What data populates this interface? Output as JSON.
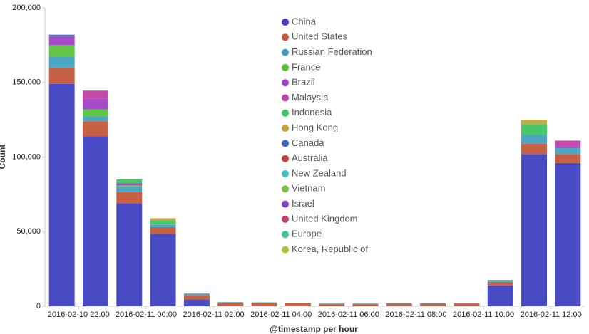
{
  "chart_data": {
    "type": "stacked_bar",
    "xlabel": "@timestamp per hour",
    "ylabel": "Count",
    "categories": [
      null,
      "2016-02-10 22:00",
      null,
      "2016-02-11 00:00",
      null,
      "2016-02-11 02:00",
      null,
      "2016-02-11 04:00",
      null,
      "2016-02-11 06:00",
      null,
      "2016-02-11 08:00",
      null,
      "2016-02-11 10:00",
      null,
      "2016-02-11 12:00"
    ],
    "ylim": [
      0,
      200000
    ],
    "yticks": [
      0,
      {
        "value": 50000,
        "label": "50,000"
      },
      {
        "value": 100000,
        "label": "100,000"
      },
      {
        "value": 150000,
        "label": "150,000"
      },
      {
        "value": 200000,
        "label": "200,000"
      }
    ],
    "legend": "top-center",
    "series": [
      {
        "name": "China",
        "color": "#3f41c2",
        "values": [
          149000,
          114000,
          69000,
          48500,
          4500,
          500,
          500,
          500,
          300,
          300,
          200,
          200,
          300,
          14000,
          102000,
          96000
        ]
      },
      {
        "name": "United States",
        "color": "#c4583b",
        "values": [
          11000,
          10000,
          7500,
          4500,
          3000,
          2000,
          1800,
          1500,
          1300,
          1300,
          1500,
          1500,
          1500,
          2000,
          7000,
          6000
        ]
      },
      {
        "name": "Russian Federation",
        "color": "#3fa2c2",
        "values": [
          7500,
          3000,
          3500,
          1500,
          1000,
          300,
          300,
          200,
          200,
          200,
          200,
          200,
          200,
          1000,
          6000,
          4000
        ]
      },
      {
        "name": "France",
        "color": "#5ac13e",
        "values": [
          7500,
          5000,
          1000,
          500,
          0,
          0,
          0,
          0,
          0,
          0,
          0,
          0,
          0,
          300,
          0,
          0
        ]
      },
      {
        "name": "Brazil",
        "color": "#a040c6",
        "values": [
          6000,
          7000,
          1500,
          0,
          0,
          0,
          0,
          0,
          0,
          0,
          0,
          0,
          0,
          300,
          0,
          1000
        ]
      },
      {
        "name": "Malaysia",
        "color": "#c040a4",
        "values": [
          0,
          5500,
          0,
          0,
          0,
          0,
          0,
          0,
          0,
          0,
          0,
          0,
          0,
          0,
          0,
          4000
        ]
      },
      {
        "name": "Indonesia",
        "color": "#3fc35f",
        "values": [
          0,
          0,
          2500,
          2500,
          0,
          0,
          0,
          0,
          0,
          0,
          0,
          0,
          0,
          0,
          7000,
          0
        ]
      },
      {
        "name": "Hong Kong",
        "color": "#c4a23c",
        "values": [
          0,
          0,
          0,
          1500,
          0,
          0,
          0,
          0,
          0,
          0,
          0,
          0,
          0,
          0,
          3000,
          0
        ]
      },
      {
        "name": "Canada",
        "color": "#4062c2",
        "values": [
          1000,
          0,
          0,
          0,
          0,
          0,
          0,
          0,
          0,
          0,
          0,
          0,
          0,
          0,
          0,
          0
        ]
      },
      {
        "name": "Australia",
        "color": "#c24040",
        "values": [
          0,
          0,
          0,
          0,
          0,
          0,
          0,
          0,
          0,
          0,
          0,
          0,
          0,
          0,
          0,
          0
        ]
      },
      {
        "name": "New Zealand",
        "color": "#3fc2c0",
        "values": [
          0,
          0,
          0,
          0,
          0,
          0,
          0,
          0,
          0,
          0,
          0,
          0,
          0,
          0,
          0,
          0
        ]
      },
      {
        "name": "Vietnam",
        "color": "#78c23f",
        "values": [
          0,
          0,
          0,
          0,
          0,
          0,
          0,
          0,
          0,
          0,
          0,
          0,
          0,
          0,
          0,
          0
        ]
      },
      {
        "name": "Israel",
        "color": "#8040c4",
        "values": [
          0,
          0,
          0,
          0,
          0,
          0,
          0,
          0,
          0,
          0,
          0,
          0,
          0,
          0,
          0,
          0
        ]
      },
      {
        "name": "United Kingdom",
        "color": "#c4406e",
        "values": [
          0,
          0,
          0,
          0,
          0,
          0,
          0,
          0,
          0,
          0,
          0,
          0,
          0,
          0,
          0,
          0
        ]
      },
      {
        "name": "Europe",
        "color": "#3fc497",
        "values": [
          0,
          0,
          0,
          0,
          0,
          0,
          0,
          0,
          0,
          0,
          0,
          0,
          0,
          0,
          0,
          0
        ]
      },
      {
        "name": "Korea, Republic of",
        "color": "#b0c13f",
        "values": [
          0,
          0,
          0,
          0,
          0,
          0,
          0,
          0,
          0,
          0,
          0,
          0,
          0,
          0,
          0,
          0
        ]
      }
    ]
  }
}
